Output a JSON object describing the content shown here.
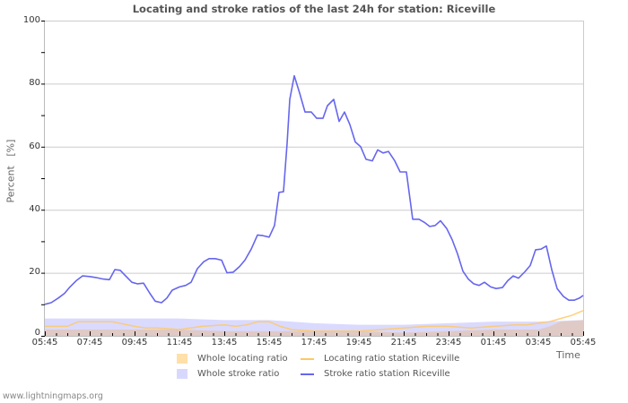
{
  "title": "Locating and stroke ratios of the last 24h for station: Riceville",
  "footer": "www.lightningmaps.org",
  "axes": {
    "ylabel": "Percent   [%]",
    "xlabel": "Time",
    "yticks": [
      "100",
      "80",
      "60",
      "40",
      "20",
      "0"
    ],
    "xticks": [
      "05:45",
      "07:45",
      "09:45",
      "11:45",
      "13:45",
      "15:45",
      "17:45",
      "19:45",
      "21:45",
      "23:45",
      "01:45",
      "03:45",
      "05:45"
    ]
  },
  "legend": [
    {
      "label": "Whole locating ratio",
      "color": "#ffe0a8",
      "kind": "area"
    },
    {
      "label": "Locating ratio station Riceville",
      "color": "#ffc860",
      "kind": "line"
    },
    {
      "label": "Whole stroke ratio",
      "color": "#d8d8ff",
      "kind": "area"
    },
    {
      "label": "Stroke ratio station Riceville",
      "color": "#6666ee",
      "kind": "line"
    }
  ],
  "colors": {
    "grid": "#cccccc",
    "axis": "#cccccc",
    "stroke_line": "#6666ee",
    "locating_line": "#ffc860",
    "whole_stroke_area": "#d8d8ff",
    "whole_locating_area": "#e0c8c0"
  },
  "chart_data": {
    "type": "line",
    "title": "Locating and stroke ratios of the last 24h for station: Riceville",
    "xlabel": "Time",
    "ylabel": "Percent [%]",
    "ylim": [
      0,
      100
    ],
    "xlim_hours": [
      0,
      24
    ],
    "x_start_label": "05:45",
    "x_unit": "hours since 05:45",
    "grid": true,
    "legend_position": "bottom",
    "categories": [
      "05:45",
      "07:45",
      "09:45",
      "11:45",
      "13:45",
      "15:45",
      "17:45",
      "19:45",
      "21:45",
      "23:45",
      "01:45",
      "03:45",
      "05:45"
    ],
    "series": [
      {
        "name": "Stroke ratio station Riceville",
        "type": "line",
        "color": "#6666ee",
        "x": [
          0,
          0.28,
          0.6,
          0.88,
          1.12,
          1.4,
          1.68,
          2.0,
          2.28,
          2.6,
          2.88,
          3.12,
          3.36,
          3.6,
          3.88,
          4.12,
          4.4,
          4.68,
          4.92,
          5.2,
          5.44,
          5.68,
          6.0,
          6.28,
          6.52,
          6.8,
          7.08,
          7.32,
          7.6,
          7.88,
          8.12,
          8.4,
          8.68,
          8.92,
          9.2,
          9.48,
          9.72,
          10.0,
          10.24,
          10.44,
          10.64,
          10.8,
          10.92,
          11.12,
          11.36,
          11.6,
          11.88,
          12.12,
          12.4,
          12.6,
          12.88,
          13.12,
          13.36,
          13.6,
          13.84,
          14.08,
          14.32,
          14.6,
          14.84,
          15.08,
          15.32,
          15.6,
          15.84,
          16.12,
          16.4,
          16.68,
          16.92,
          17.16,
          17.4,
          17.64,
          17.92,
          18.16,
          18.4,
          18.64,
          18.88,
          19.12,
          19.36,
          19.6,
          19.88,
          20.12,
          20.4,
          20.64,
          20.88,
          21.12,
          21.4,
          21.64,
          21.88,
          22.12,
          22.36,
          22.6,
          22.84,
          23.12,
          23.36,
          23.6,
          23.84,
          24.0
        ],
        "values": [
          10,
          10.5,
          12,
          13.5,
          15.5,
          17.5,
          19,
          18.8,
          18.5,
          18,
          17.8,
          21,
          20.8,
          19,
          17,
          16.5,
          16.7,
          13.5,
          11,
          10.5,
          12,
          14.5,
          15.5,
          16,
          17,
          21.3,
          23.5,
          24.5,
          24.5,
          24,
          20,
          20.2,
          22,
          24,
          27.5,
          32,
          31.8,
          31.3,
          35,
          45.5,
          45.7,
          61,
          75,
          82.5,
          77,
          71,
          71,
          69,
          69,
          73,
          75,
          68,
          71,
          67,
          61.5,
          60,
          56,
          55.5,
          59,
          58,
          58.5,
          55.5,
          52,
          52,
          37,
          37,
          36,
          34.7,
          35,
          36.5,
          34,
          30.5,
          26,
          20.5,
          18,
          16.5,
          16,
          17,
          15.5,
          15,
          15.3,
          17.5,
          19,
          18.3,
          20.3,
          22.3,
          27.3,
          27.5,
          28.5,
          21,
          15,
          12.5,
          11.3,
          11.3,
          12,
          12.8
        ]
      },
      {
        "name": "Locating ratio station Riceville",
        "type": "line",
        "color": "#ffc860",
        "x": [
          0,
          1,
          1.5,
          2,
          3,
          4,
          4.5,
          5,
          6,
          7,
          8,
          8.5,
          9,
          9.5,
          10,
          10.5,
          11,
          12,
          13,
          14,
          15,
          16,
          17,
          18,
          19,
          20,
          21,
          21.5,
          22,
          22.5,
          23,
          23.5,
          24
        ],
        "values": [
          3,
          3,
          4.5,
          4.5,
          4.5,
          3,
          2.5,
          2.5,
          2,
          3,
          3.5,
          3,
          3.5,
          4.5,
          4.5,
          3,
          2,
          1.5,
          1.5,
          1.5,
          2,
          2.5,
          3,
          3,
          2.5,
          3,
          3.5,
          3.5,
          4,
          4.5,
          5.5,
          6.5,
          8
        ]
      },
      {
        "name": "Whole stroke ratio",
        "type": "area",
        "color": "#d8d8ff",
        "x": [
          0,
          2,
          4,
          6,
          8,
          10,
          12,
          14,
          16,
          18,
          20,
          22,
          24
        ],
        "values": [
          5.5,
          5.5,
          5.5,
          5.5,
          5,
          5,
          4,
          3.5,
          3.5,
          4,
          4.5,
          4.5,
          5
        ]
      },
      {
        "name": "Whole locating ratio",
        "type": "area",
        "color": "#ffe0a8",
        "x": [
          0,
          2,
          4,
          6,
          8,
          10,
          12,
          14,
          16,
          18,
          20,
          21,
          22,
          22.5,
          23,
          24
        ],
        "values": [
          2,
          2,
          2,
          2,
          1.5,
          1.5,
          1.5,
          1.5,
          1,
          1.5,
          2,
          2,
          2,
          3,
          4.5,
          5
        ]
      }
    ]
  }
}
